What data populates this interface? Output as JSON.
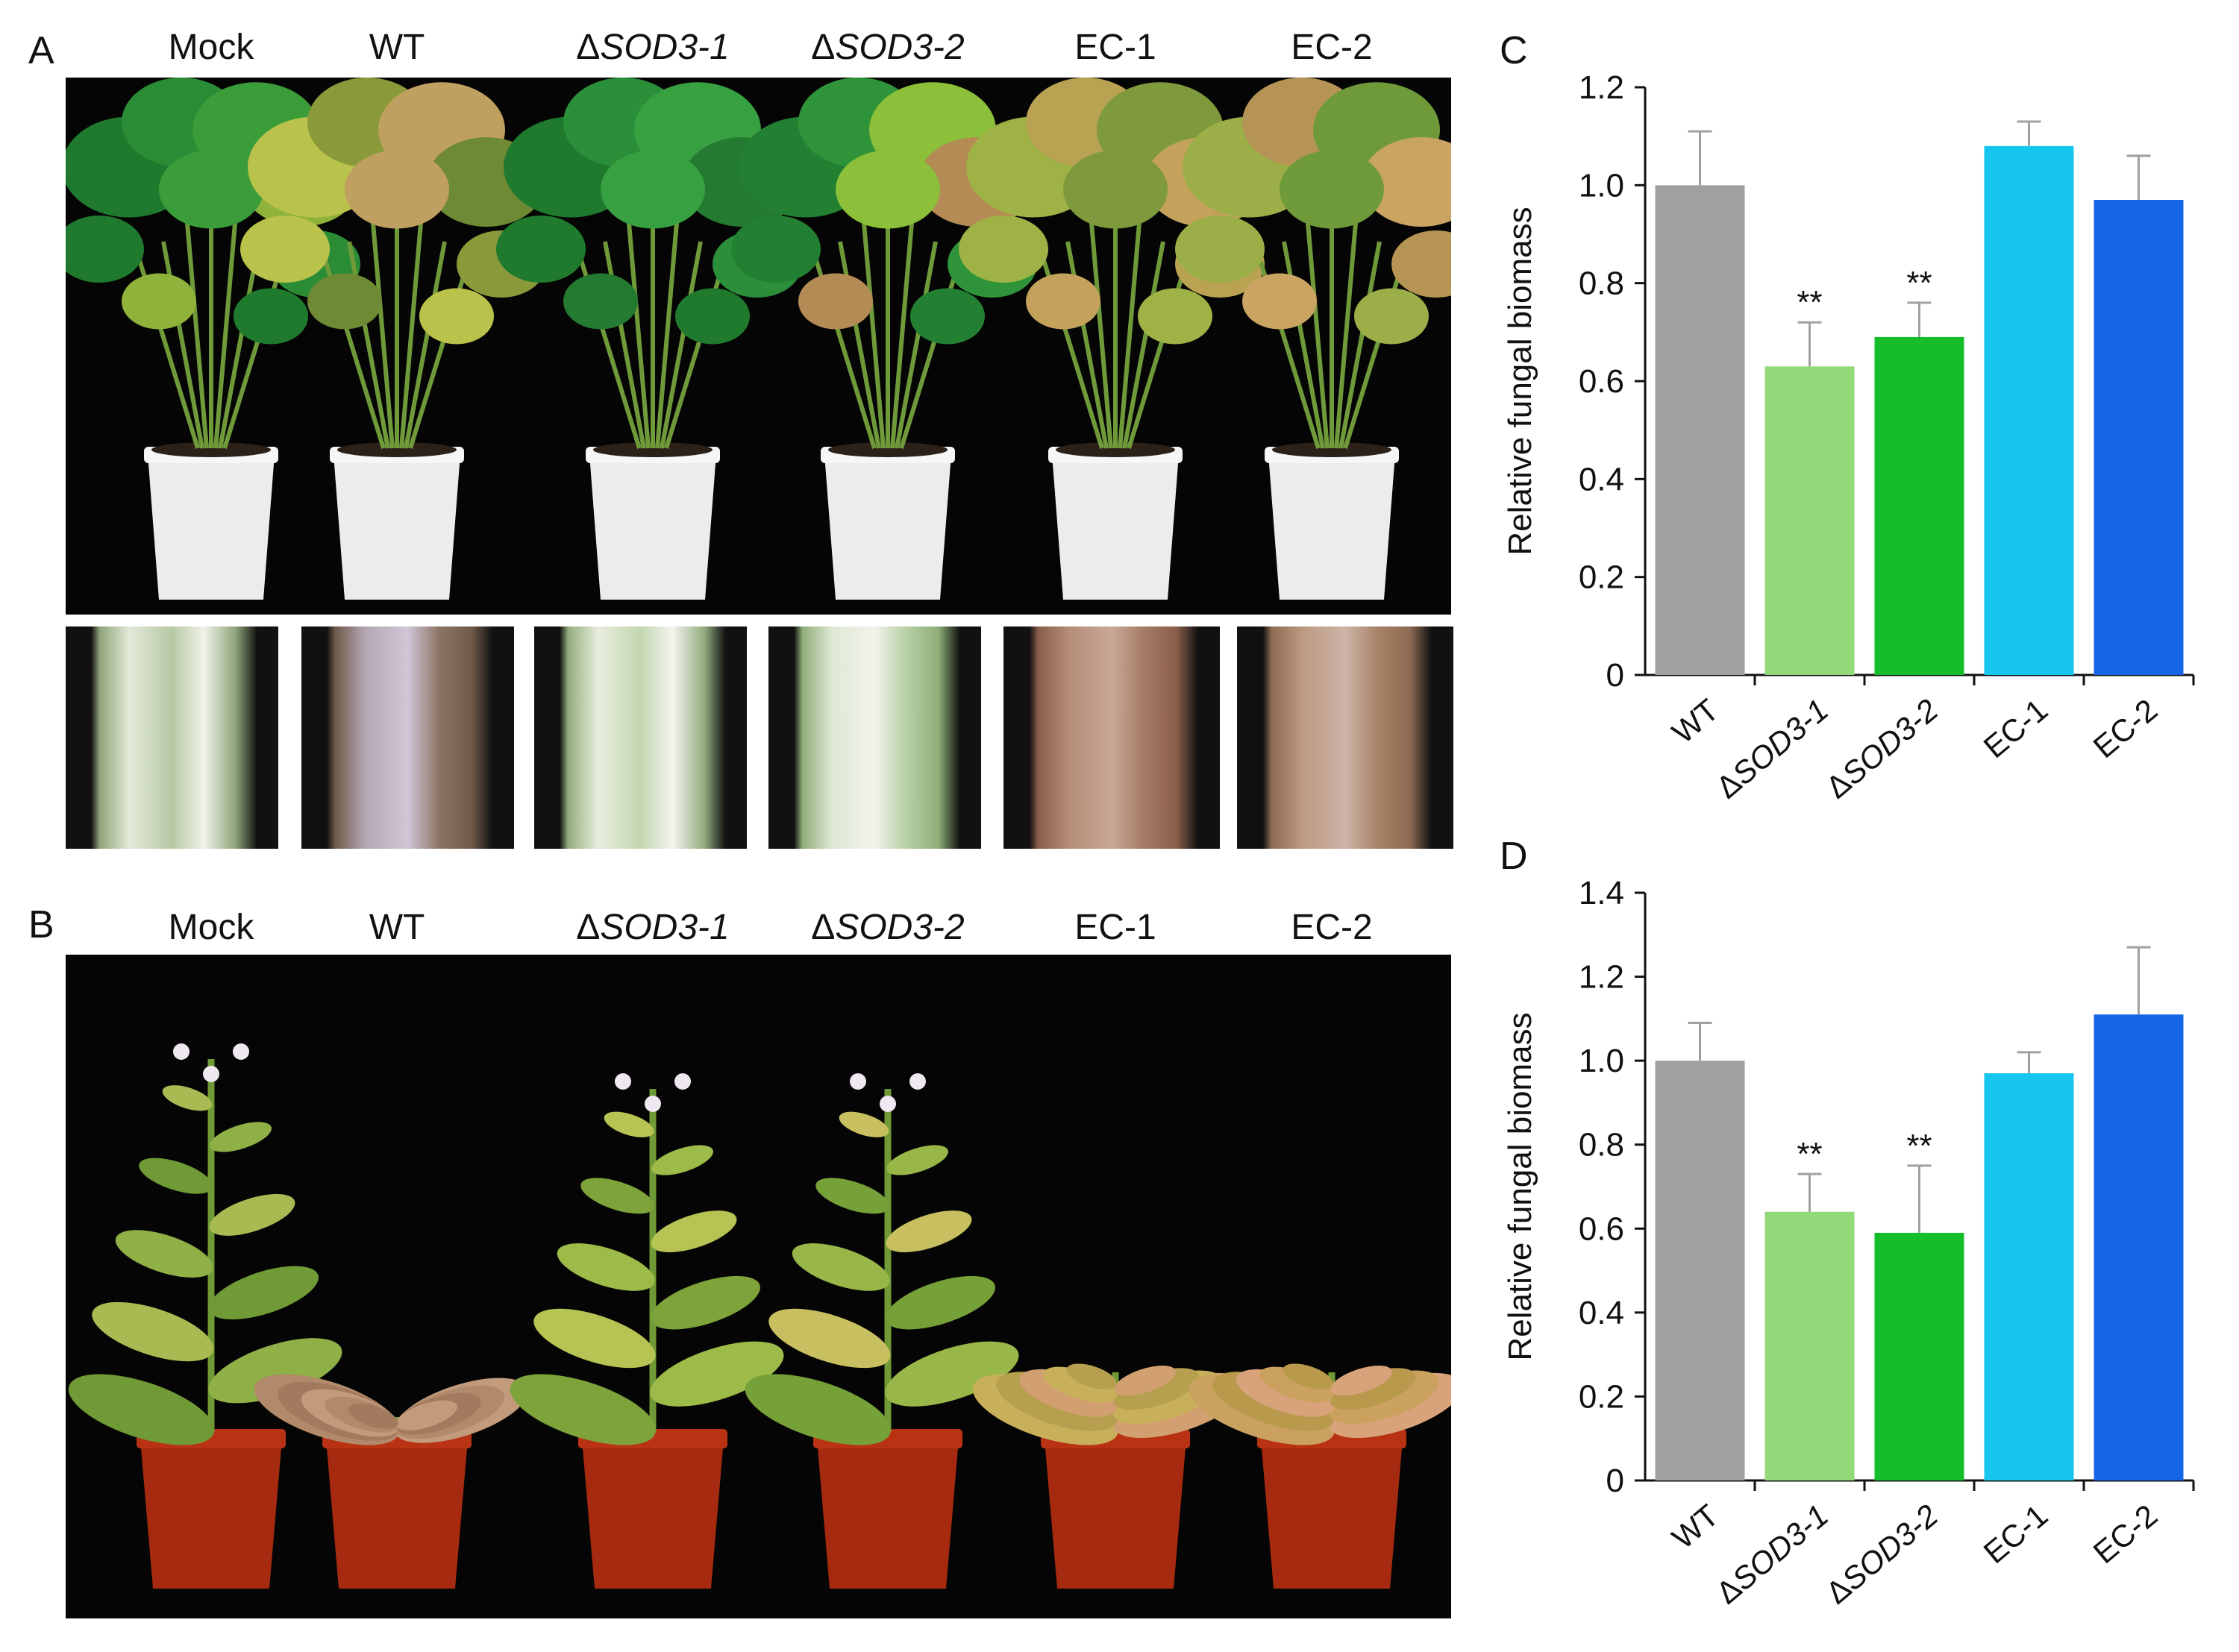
{
  "panel_a": {
    "letter": "A",
    "columns": [
      {
        "prefix": "",
        "italic": "",
        "suffix": "Mock"
      },
      {
        "prefix": "",
        "italic": "",
        "suffix": "WT"
      },
      {
        "prefix": "Δ",
        "italic": "SOD3-1",
        "suffix": ""
      },
      {
        "prefix": "Δ",
        "italic": "SOD3-2",
        "suffix": ""
      },
      {
        "prefix": "",
        "italic": "",
        "suffix": "EC-1"
      },
      {
        "prefix": "",
        "italic": "",
        "suffix": "EC-2"
      }
    ]
  },
  "panel_b": {
    "letter": "B",
    "columns": [
      {
        "prefix": "",
        "italic": "",
        "suffix": "Mock"
      },
      {
        "prefix": "",
        "italic": "",
        "suffix": "WT"
      },
      {
        "prefix": "Δ",
        "italic": "SOD3-1",
        "suffix": ""
      },
      {
        "prefix": "Δ",
        "italic": "SOD3-2",
        "suffix": ""
      },
      {
        "prefix": "",
        "italic": "",
        "suffix": "EC-1"
      },
      {
        "prefix": "",
        "italic": "",
        "suffix": "EC-2"
      }
    ]
  },
  "chart_data": [
    {
      "type": "bar",
      "panel": "C",
      "ylabel": "Relative fungal biomass",
      "ylim": [
        0,
        1.2
      ],
      "yticks": [
        0,
        0.2,
        0.4,
        0.6,
        0.8,
        1.0,
        1.2
      ],
      "ytick_labels": [
        "0",
        "0.2",
        "0.4",
        "0.6",
        "0.8",
        "1.0",
        "1.2"
      ],
      "categories": [
        "WT",
        "ΔSOD3-1",
        "ΔSOD3-2",
        "EC-1",
        "EC-2"
      ],
      "values": [
        1.0,
        0.63,
        0.69,
        1.08,
        0.97
      ],
      "errors": [
        0.11,
        0.09,
        0.07,
        0.05,
        0.09
      ],
      "significance": [
        "",
        "**",
        "**",
        "",
        ""
      ],
      "colors": [
        "#a0a0a0",
        "#92d97a",
        "#16bd2b",
        "#17c6ee",
        "#1565e6"
      ]
    },
    {
      "type": "bar",
      "panel": "D",
      "ylabel": "Relative fungal biomass",
      "ylim": [
        0,
        1.4
      ],
      "yticks": [
        0,
        0.2,
        0.4,
        0.6,
        0.8,
        1.0,
        1.2,
        1.4
      ],
      "ytick_labels": [
        "0",
        "0.2",
        "0.4",
        "0.6",
        "0.8",
        "1.0",
        "1.2",
        "1.4"
      ],
      "categories": [
        "WT",
        "ΔSOD3-1",
        "ΔSOD3-2",
        "EC-1",
        "EC-2"
      ],
      "values": [
        1.0,
        0.64,
        0.59,
        0.97,
        1.11
      ],
      "errors": [
        0.09,
        0.09,
        0.16,
        0.05,
        0.16
      ],
      "significance": [
        "",
        "**",
        "**",
        "",
        ""
      ],
      "colors": [
        "#a0a0a0",
        "#92d97a",
        "#16bd2b",
        "#17c6ee",
        "#1565e6"
      ]
    }
  ]
}
